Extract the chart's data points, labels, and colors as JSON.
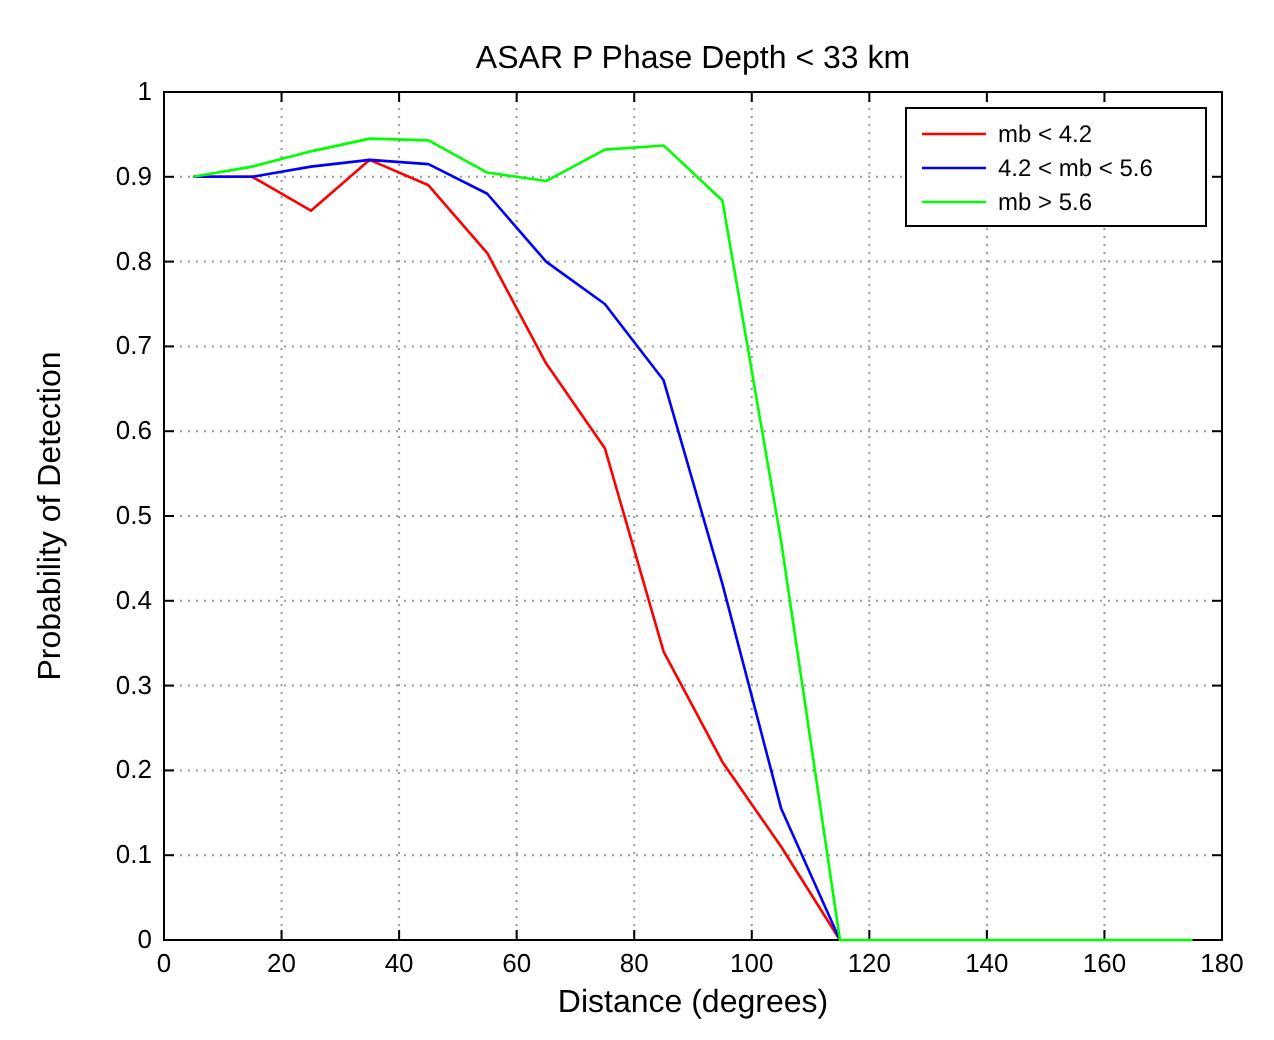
{
  "chart_data": {
    "type": "line",
    "title": "ASAR  P Phase   Depth < 33 km",
    "xlabel": "Distance (degrees)",
    "ylabel": "Probability of Detection",
    "x": [
      5,
      15,
      25,
      35,
      45,
      55,
      65,
      75,
      85,
      95,
      105,
      115,
      125,
      135,
      145,
      155,
      165,
      175
    ],
    "series": [
      {
        "name": "mb < 4.2",
        "color": "#ff0000",
        "values": [
          0.9,
          0.9,
          0.86,
          0.92,
          0.89,
          0.81,
          0.68,
          0.58,
          0.34,
          0.21,
          0.11,
          0,
          null,
          null,
          null,
          null,
          null,
          null
        ]
      },
      {
        "name": "4.2 < mb < 5.6",
        "color": "#0000ff",
        "values": [
          0.9,
          0.9,
          0.912,
          0.92,
          0.915,
          0.88,
          0.8,
          0.75,
          0.66,
          0.42,
          0.155,
          0,
          null,
          null,
          null,
          null,
          null,
          null
        ]
      },
      {
        "name": "mb > 5.6",
        "color": "#00ff00",
        "values": [
          0.9,
          0.912,
          0.93,
          0.945,
          0.943,
          0.905,
          0.895,
          0.932,
          0.937,
          0.872,
          0.47,
          0,
          0,
          0,
          0,
          0,
          0,
          0
        ]
      }
    ],
    "xlim": [
      0,
      180
    ],
    "xticks": [
      0,
      20,
      40,
      60,
      80,
      100,
      120,
      140,
      160,
      180
    ],
    "ylim": [
      0,
      1
    ],
    "yticks": [
      0,
      0.1,
      0.2,
      0.3,
      0.4,
      0.5,
      0.6,
      0.7,
      0.8,
      0.9,
      1
    ],
    "grid": true,
    "legend": "top right",
    "marker": "none",
    "line_style": "solid"
  }
}
